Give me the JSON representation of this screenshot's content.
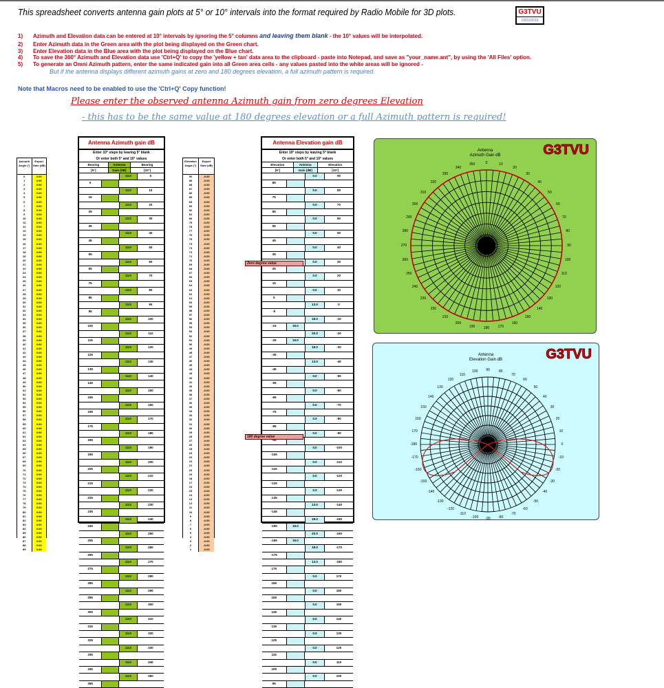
{
  "header": {
    "title": "This spreadsheet converts antenna gain plots at 5° or 10° intervals into the format required by Radio Mobile for 3D plots.",
    "logo_name": "G3TVU",
    "logo_date": "10/02/2019"
  },
  "instructions": [
    {
      "num": "1)",
      "text": "Azimuth and Elevation data can be entered at 10° intervals by ignoring the 5° columns",
      "blue": "and  leaving them blank",
      "tail": " - the 10° values will be interpolated."
    },
    {
      "num": "2)",
      "text": "Enter Azimuth data in the Green area with the plot being displayed on the Green chart."
    },
    {
      "num": "3)",
      "text": "Enter Elevation data in the Blue area with the plot being displayed on the Blue chart."
    },
    {
      "num": "4)",
      "text": "To save the 360° Azimuth and Elevation data use 'Ctrl+Q' to copy the 'yellow + tan' data area to the clipboard - paste into Notepad, and save as \"your_name.ant\", by using the 'All Files' option."
    },
    {
      "num": "5)",
      "text": "To generate an Omni Azimuth pattern, enter the same indicated gain into all Green area cells - any values pasted into the white areas will be ignored -"
    }
  ],
  "instruction_note": "But if the antenna displays different azimuth gains at zero and 180 degrees elevation, a full azimuth pattern is required.",
  "macro_note": "Note that Macros need to be enabled to use the 'Ctrl+Q' Copy function!",
  "heading_primary": "Please enter the observed antenna Azimuth gain from zero degrees Elevation",
  "heading_secondary": "- this has to be the same value at 180 degrees elevation or a full Azimuth pattern is required!",
  "export_azimuth": {
    "headers": [
      "Azimuth Angle (°)",
      "Export Gain (dB)"
    ],
    "value": "0.00",
    "color": "#ffff00"
  },
  "export_elevation": {
    "headers": [
      "Elevation Angle (°)",
      "Export Gain (dB)"
    ],
    "value": "-0.00",
    "color": "#f8cba0"
  },
  "azimuth_table": {
    "title": "Antenna Azimuth gain dB",
    "sub1": "Enter 10° steps by leaving 5° blank",
    "sub2": "Or enter both 5° and 10° values",
    "col_headers": [
      [
        "Bearing",
        "[5°]"
      ],
      [
        "Antenna",
        "Gain [dB]"
      ],
      [
        "Bearing",
        "[10°]"
      ]
    ],
    "color": "#92c020",
    "gain": "13.0",
    "angles10": [
      0,
      10,
      20,
      30,
      40,
      50,
      60,
      70,
      80,
      90,
      100,
      110,
      120,
      130,
      140,
      150,
      160,
      170,
      180,
      190,
      200,
      210,
      220,
      230,
      240,
      250,
      260,
      270,
      280,
      290,
      300,
      310,
      320,
      330,
      340,
      350
    ],
    "angles5": [
      5,
      15,
      25,
      35,
      45,
      55,
      65,
      75,
      85,
      95,
      105,
      115,
      125,
      135,
      145,
      155,
      165,
      175,
      185,
      195,
      205,
      215,
      225,
      235,
      245,
      255,
      265,
      275,
      285,
      295,
      305,
      315,
      325,
      335,
      345,
      355
    ]
  },
  "elevation_table": {
    "title": "Antenna Elevation gain dB",
    "sub1": "Enter 10° steps by leaving 5° blank",
    "sub2": "Or enter both 5° and 10° values",
    "col_headers": [
      [
        "Elevation",
        "[5°]"
      ],
      [
        "Antenna",
        "Gain [dB]"
      ],
      [
        "Elevation",
        "[10°]"
      ]
    ],
    "color": "#ccf4f6",
    "rows10": [
      {
        "angle": "90",
        "gain": "0.0"
      },
      {
        "angle": "80",
        "gain": "0.0"
      },
      {
        "angle": "70",
        "gain": "0.0"
      },
      {
        "angle": "60",
        "gain": "0.0"
      },
      {
        "angle": "50",
        "gain": "0.0"
      },
      {
        "angle": "40",
        "gain": "0.0"
      },
      {
        "angle": "30",
        "gain": "0.0"
      },
      {
        "angle": "20",
        "gain": "0.0"
      },
      {
        "angle": "10",
        "gain": "0.0"
      },
      {
        "angle": "0",
        "gain": "13.0"
      },
      {
        "angle": "-10",
        "gain": "18.0"
      },
      {
        "angle": "-20",
        "gain": "20.0"
      },
      {
        "angle": "-30",
        "gain": "18.0"
      },
      {
        "angle": "-40",
        "gain": "13.0"
      },
      {
        "angle": "-50",
        "gain": "0.0"
      },
      {
        "angle": "-60",
        "gain": "0.0"
      },
      {
        "angle": "-70",
        "gain": "0.0"
      },
      {
        "angle": "-80",
        "gain": "0.0"
      },
      {
        "angle": "-90",
        "gain": "0.0"
      },
      {
        "angle": "-100",
        "gain": "0.0"
      },
      {
        "angle": "-110",
        "gain": "0.0"
      },
      {
        "angle": "-120",
        "gain": "0.0"
      },
      {
        "angle": "-130",
        "gain": "0.0"
      },
      {
        "angle": "-140",
        "gain": "13.0"
      },
      {
        "angle": "-150",
        "gain": "18.0"
      },
      {
        "angle": "-160",
        "gain": "20.0"
      },
      {
        "angle": "-170",
        "gain": "18.0"
      },
      {
        "angle": "-180",
        "gain": "13.0"
      },
      {
        "angle": "170",
        "gain": "0.0"
      },
      {
        "angle": "160",
        "gain": "0.0"
      },
      {
        "angle": "150",
        "gain": "0.0"
      },
      {
        "angle": "140",
        "gain": "0.0"
      },
      {
        "angle": "130",
        "gain": "0.0"
      },
      {
        "angle": "120",
        "gain": "0.0"
      },
      {
        "angle": "110",
        "gain": "0.0"
      },
      {
        "angle": "100",
        "gain": "0.0"
      }
    ],
    "rows5": [
      {
        "angle": "85",
        "gain": ""
      },
      {
        "angle": "75",
        "gain": ""
      },
      {
        "angle": "65",
        "gain": ""
      },
      {
        "angle": "55",
        "gain": ""
      },
      {
        "angle": "45",
        "gain": ""
      },
      {
        "angle": "35",
        "gain": ""
      },
      {
        "angle": "25",
        "gain": ""
      },
      {
        "angle": "15",
        "gain": ""
      },
      {
        "angle": "5",
        "gain": ""
      },
      {
        "angle": "-5",
        "gain": ""
      },
      {
        "angle": "-15",
        "gain": "19.0"
      },
      {
        "angle": "-25",
        "gain": "19.0"
      },
      {
        "angle": "-35",
        "gain": ""
      },
      {
        "angle": "-45",
        "gain": ""
      },
      {
        "angle": "-55",
        "gain": ""
      },
      {
        "angle": "-65",
        "gain": ""
      },
      {
        "angle": "-75",
        "gain": ""
      },
      {
        "angle": "-85",
        "gain": ""
      },
      {
        "angle": "-95",
        "gain": ""
      },
      {
        "angle": "-105",
        "gain": ""
      },
      {
        "angle": "-115",
        "gain": ""
      },
      {
        "angle": "-125",
        "gain": ""
      },
      {
        "angle": "-135",
        "gain": ""
      },
      {
        "angle": "-145",
        "gain": ""
      },
      {
        "angle": "-155",
        "gain": "19.0"
      },
      {
        "angle": "-165",
        "gain": "19.0"
      },
      {
        "angle": "-175",
        "gain": ""
      },
      {
        "angle": "175",
        "gain": ""
      },
      {
        "angle": "165",
        "gain": ""
      },
      {
        "angle": "155",
        "gain": ""
      },
      {
        "angle": "145",
        "gain": ""
      },
      {
        "angle": "135",
        "gain": ""
      },
      {
        "angle": "125",
        "gain": ""
      },
      {
        "angle": "115",
        "gain": ""
      },
      {
        "angle": "105",
        "gain": ""
      },
      {
        "angle": "95",
        "gain": ""
      }
    ],
    "tag_zero": "Zero degree value",
    "tag_180": "180 degree value"
  },
  "charts": {
    "azimuth": {
      "title_l1": "Antenna",
      "title_l2": "Azimuth Gain dB",
      "brand": "G3TVU",
      "bg": "#92d050",
      "ticks": [
        "0",
        "10",
        "20",
        "30",
        "40",
        "50",
        "60",
        "70",
        "80",
        "90",
        "100",
        "110",
        "120",
        "130",
        "140",
        "150",
        "160",
        "170",
        "180",
        "190",
        "200",
        "210",
        "220",
        "230",
        "240",
        "250",
        "260",
        "270",
        "280",
        "290",
        "300",
        "310",
        "320",
        "330",
        "340",
        "350"
      ]
    },
    "elevation": {
      "title_l1": "Antenna",
      "title_l2": "Elevation Gain dB",
      "brand": "G3TVU",
      "bg": "#ccfcff",
      "ticks": [
        "90",
        "80",
        "70",
        "60",
        "50",
        "40",
        "30",
        "20",
        "10",
        "0",
        "-10",
        "-20",
        "-30",
        "-40",
        "-50",
        "-60",
        "-70",
        "-80",
        "-90",
        "-100",
        "-110",
        "-120",
        "-130",
        "-140",
        "-150",
        "-160",
        "-170",
        "-180",
        "170",
        "160",
        "150",
        "140",
        "130",
        "120",
        "110",
        "100"
      ]
    }
  }
}
